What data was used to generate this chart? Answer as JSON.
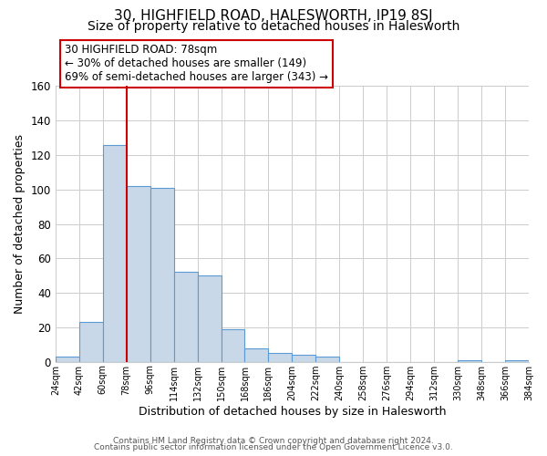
{
  "title": "30, HIGHFIELD ROAD, HALESWORTH, IP19 8SJ",
  "subtitle": "Size of property relative to detached houses in Halesworth",
  "xlabel": "Distribution of detached houses by size in Halesworth",
  "ylabel": "Number of detached properties",
  "footer_line1": "Contains HM Land Registry data © Crown copyright and database right 2024.",
  "footer_line2": "Contains public sector information licensed under the Open Government Licence v3.0.",
  "bin_edges": [
    24,
    42,
    60,
    78,
    96,
    114,
    132,
    150,
    168,
    186,
    204,
    222,
    240,
    258,
    276,
    294,
    312,
    330,
    348,
    366,
    384
  ],
  "bar_values": [
    3,
    23,
    126,
    102,
    101,
    52,
    50,
    19,
    8,
    5,
    4,
    3,
    0,
    0,
    0,
    0,
    0,
    1,
    0,
    1
  ],
  "bar_color": "#c8d8e8",
  "bar_edge_color": "#5b9bd5",
  "vline_x": 78,
  "vline_color": "#cc0000",
  "annotation_line1": "30 HIGHFIELD ROAD: 78sqm",
  "annotation_line2": "← 30% of detached houses are smaller (149)",
  "annotation_line3": "69% of semi-detached houses are larger (343) →",
  "ylim": [
    0,
    160
  ],
  "yticks": [
    0,
    20,
    40,
    60,
    80,
    100,
    120,
    140,
    160
  ],
  "xtick_labels": [
    "24sqm",
    "42sqm",
    "60sqm",
    "78sqm",
    "96sqm",
    "114sqm",
    "132sqm",
    "150sqm",
    "168sqm",
    "186sqm",
    "204sqm",
    "222sqm",
    "240sqm",
    "258sqm",
    "276sqm",
    "294sqm",
    "312sqm",
    "330sqm",
    "348sqm",
    "366sqm",
    "384sqm"
  ],
  "background_color": "#ffffff",
  "grid_color": "#cccccc",
  "title_fontsize": 11,
  "subtitle_fontsize": 10,
  "annotation_fontsize": 8.5,
  "annotation_box_edge_color": "#cc0000",
  "annotation_box_face_color": "#ffffff",
  "xlabel_fontsize": 9,
  "ylabel_fontsize": 9,
  "footer_fontsize": 6.5
}
